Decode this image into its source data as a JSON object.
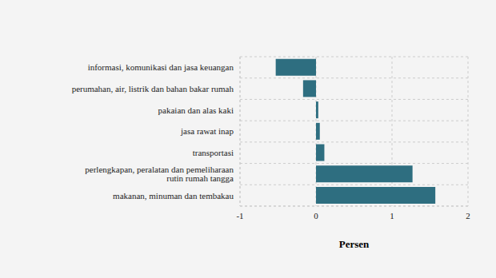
{
  "chart_data": {
    "type": "bar",
    "orientation": "horizontal",
    "categories": [
      "informasi, komunikasi dan jasa keuangan",
      "perumahan, air, listrik dan bahan bakar rumah",
      "pakaian dan alas kaki",
      "jasa rawat inap",
      "transportasi",
      "perlengkapan, peralatan dan pemeliharaan rutin rumah tangga",
      "makanan, minuman dan tembakau"
    ],
    "values": [
      -0.53,
      -0.17,
      0.03,
      0.05,
      0.11,
      1.27,
      1.57
    ],
    "color": "#2e6e80",
    "x_label": "Persen",
    "xlim": [
      -1,
      2
    ],
    "xticks": [
      -1,
      0,
      1,
      2
    ],
    "grid": true
  }
}
